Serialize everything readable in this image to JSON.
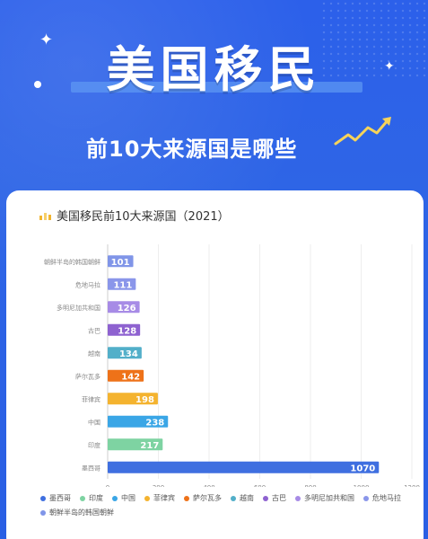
{
  "header": {
    "title": "美国移民",
    "subtitle": "前10大来源国是哪些"
  },
  "chart_data": {
    "type": "bar",
    "orientation": "horizontal",
    "title": "美国移民前10大来源国（2021）",
    "categories": [
      "朝鲜半岛的韩国朝鲜",
      "危地马拉",
      "多明尼加共和国",
      "古巴",
      "越南",
      "萨尔瓦多",
      "菲律宾",
      "中国",
      "印度",
      "墨西哥"
    ],
    "values": [
      101,
      111,
      126,
      128,
      134,
      142,
      198,
      238,
      217,
      1070
    ],
    "colors": [
      "#8095e8",
      "#8a96ea",
      "#a78be6",
      "#8e62d0",
      "#52afc9",
      "#ee7219",
      "#f4b32f",
      "#3aa6e6",
      "#7ed3a2",
      "#3f6fe0"
    ],
    "xlim": [
      0,
      1200
    ],
    "xticks": [
      0,
      200,
      400,
      600,
      800,
      1000,
      1200
    ],
    "grid": true,
    "legend": {
      "position": "bottom",
      "items": [
        "墨西哥",
        "印度",
        "中国",
        "菲律宾",
        "萨尔瓦多",
        "越南",
        "古巴",
        "多明尼加共和国",
        "危地马拉",
        "朝鲜半岛的韩国朝鲜"
      ]
    }
  }
}
